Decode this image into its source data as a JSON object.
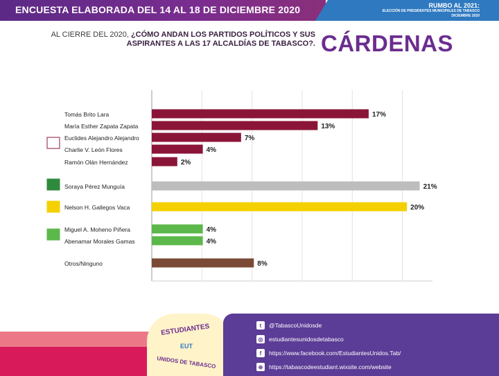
{
  "header": {
    "left_title": "ENCUESTA ELABORADA DEL 14 AL 18 DE DICIEMBRE 2020",
    "right_line1": "RUMBO AL 2021:",
    "right_line2": "ELECCIÓN DE PRESIDENTES MUNICIPALES DE TABASCO",
    "right_line3": "DICIEMBRE 2020"
  },
  "question": {
    "prefix": "AL CIERRE DEL 2020, ",
    "line1_bold": "¿CÓMO ANDAN LOS PARTIDOS POLÍTICOS Y SUS",
    "line2": "ASPIRANTES A LAS 17 ALCALDÍAS DE TABASCO?.",
    "municipality": "CÁRDENAS"
  },
  "chart_data": {
    "type": "bar",
    "orientation": "horizontal",
    "xlim": [
      0,
      22
    ],
    "grid": true,
    "categories": [
      "Tomás Brito Lara",
      "María Esther Zapata Zapata",
      "Euclides Alejandro Alejandro",
      "Charlie V. León Flores",
      "Ramón Olán Hernández",
      "Soraya Pérez Munguía",
      "Nelson H. Gallegos Vaca",
      "Miguel A. Moheno Piñera",
      "Abenamar Morales Gamas",
      "Otros/Ninguno"
    ],
    "values": [
      17,
      13,
      7,
      4,
      2,
      21,
      20,
      4,
      4,
      8
    ],
    "value_labels": [
      "17%",
      "13%",
      "7%",
      "4%",
      "2%",
      "21%",
      "20%",
      "4%",
      "4%",
      "8%"
    ],
    "colors": [
      "#8b1538",
      "#8b1538",
      "#8b1538",
      "#8b1538",
      "#8b1538",
      "#bdbdbd",
      "#f5d000",
      "#5cb84a",
      "#5cb84a",
      "#7a4a36"
    ],
    "party_logos": [
      {
        "name": "morena-logo",
        "color": "#8b1538"
      },
      {
        "name": "pri-logo",
        "color": "#2e8b3e"
      },
      {
        "name": "prd-logo",
        "color": "#f5d000"
      },
      {
        "name": "pvem-logo",
        "color": "#5cb84a"
      }
    ]
  },
  "footer": {
    "badge_top": "ESTUDIANTES",
    "badge_mid": "EUT",
    "badge_bottom": "UNIDOS DE TABASCO",
    "social": [
      {
        "icon": "twitter-icon",
        "text": "@TabascoUnidosde"
      },
      {
        "icon": "instagram-icon",
        "text": "estudiantesunidosdetabasco"
      },
      {
        "icon": "facebook-icon",
        "text": "https://www.facebook.com/EstudiantesUnidos.Tab/"
      },
      {
        "icon": "web-icon",
        "text": "https://tabascodeestudiant.wixsite.com/website"
      }
    ]
  }
}
